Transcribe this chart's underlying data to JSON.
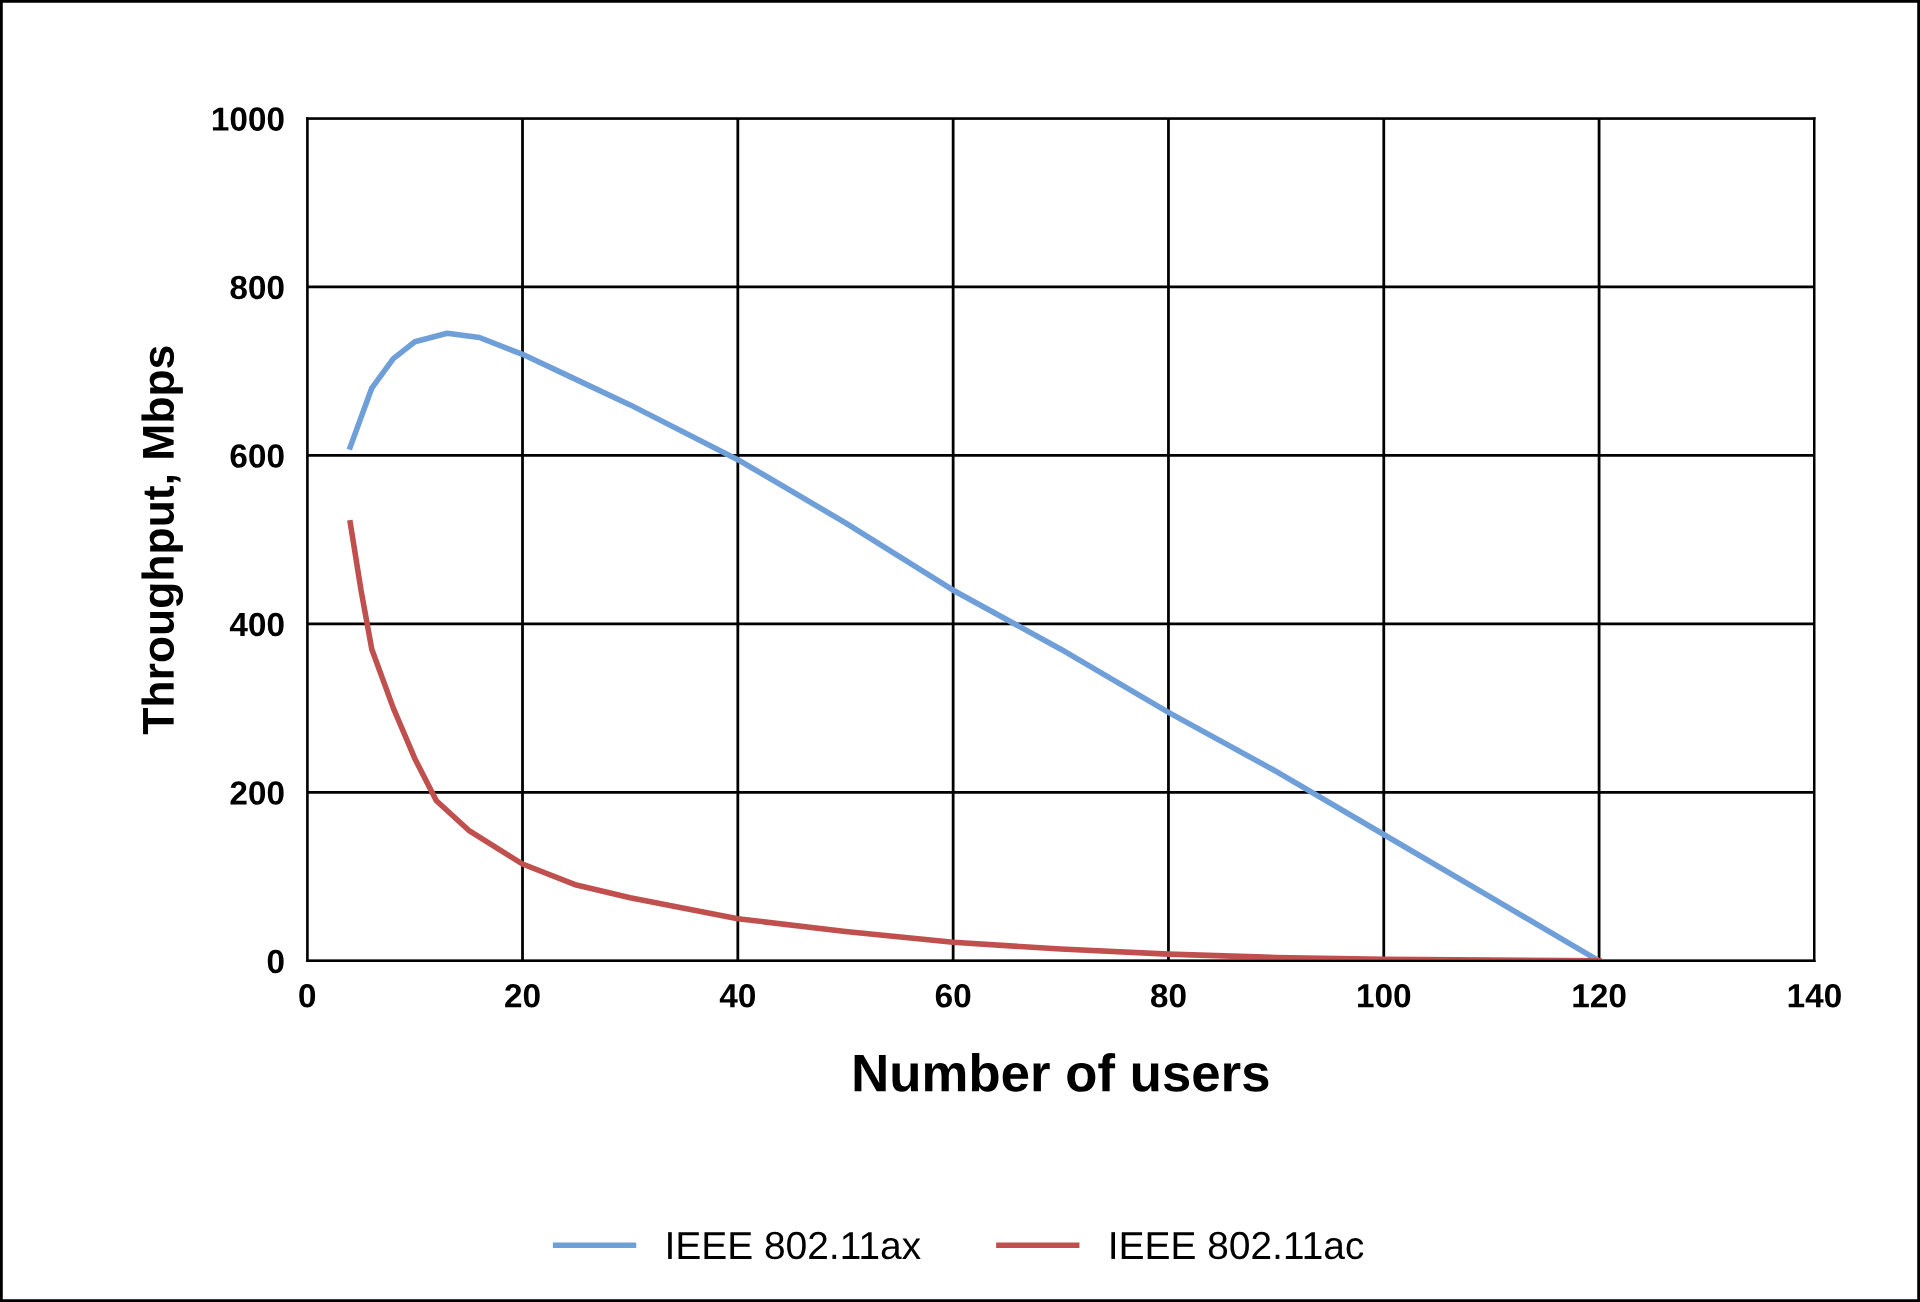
{
  "chart_data": {
    "type": "line",
    "xlabel": "Number of users",
    "ylabel": "Throughput, Mbps",
    "xlim": [
      0,
      140
    ],
    "xticks": [
      0,
      20,
      40,
      60,
      80,
      100,
      120,
      140
    ],
    "ylim": [
      0,
      1000
    ],
    "yticks": [
      0,
      200,
      400,
      600,
      800,
      1000
    ],
    "grid": true,
    "legend": "bottom",
    "marker": "none",
    "line_style": "solid",
    "series": [
      {
        "name": "IEEE 802.11ax",
        "color": "#6f9fd8",
        "x": [
          4,
          6,
          8,
          10,
          13,
          16,
          20,
          25,
          30,
          40,
          50,
          60,
          70,
          80,
          90,
          100,
          110,
          120
        ],
        "values": [
          610,
          680,
          715,
          735,
          745,
          740,
          720,
          690,
          660,
          595,
          520,
          440,
          370,
          295,
          225,
          150,
          75,
          0
        ]
      },
      {
        "name": "IEEE 802.11ac",
        "color": "#c0504d",
        "x": [
          4,
          5,
          6,
          8,
          10,
          12,
          15,
          20,
          25,
          30,
          40,
          50,
          60,
          70,
          80,
          90,
          100,
          110,
          120
        ],
        "values": [
          520,
          440,
          370,
          300,
          240,
          190,
          155,
          115,
          90,
          75,
          50,
          35,
          22,
          14,
          8,
          4,
          2,
          1,
          0
        ]
      }
    ]
  }
}
